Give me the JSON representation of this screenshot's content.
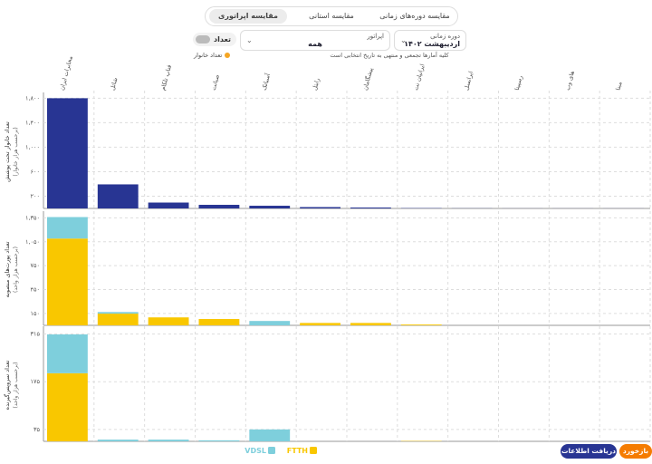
{
  "ui": {
    "tabs": [
      "مقایسه دوره‌های زمانی",
      "مقایسه استانی",
      "مقایسه اپراتوری"
    ],
    "toggle": "تعداد",
    "operator_label": "اپراتور",
    "operator_value": "همه",
    "period_label": "دوره زمانی",
    "period_value": "اردیبهشت ۱۴۰۲",
    "note": "کلیه آمارها تجمعی و منتهی به تاریخ انتخابی است",
    "household_legend": "تعداد خانوار",
    "buttons": [
      "دریافت اطلاعات",
      "بازخورد"
    ]
  },
  "chart_data": [
    {
      "type": "bar",
      "ylabel": "تعداد خانوار تحت پوشش",
      "yunit": "(برحسب هزار خانوار)",
      "categories": [
        "مخابرات ایران",
        "شاتل",
        "فناپ تلکام",
        "صبانت",
        "آسیاتک",
        "رایتل",
        "پیشگامان",
        "ایرانیان نت",
        "ایرانسل",
        "رسپینا",
        "های وب",
        "مبنا"
      ],
      "values": [
        1800,
        393,
        96,
        59,
        44,
        22,
        15,
        5,
        2,
        1,
        1,
        1
      ],
      "color": "#283593",
      "ylim": [
        0,
        1850
      ],
      "yticks": [
        {
          "value": 200,
          "label": "۲۰۰"
        },
        {
          "value": 600,
          "label": "۶۰۰"
        },
        {
          "value": 1000,
          "label": "۱,۰۰۰"
        },
        {
          "value": 1400,
          "label": "۱,۴۰۰"
        },
        {
          "value": 1800,
          "label": "۱,۸۰۰"
        }
      ],
      "grid": true
    },
    {
      "type": "stacked-bar",
      "ylabel": "تعداد پورت‌های منصوبه",
      "yunit": "(برحسب هزار واحد)",
      "series": [
        {
          "name": "FTTH",
          "color": "#f9c700",
          "values": [
            1090,
            147,
            100,
            80,
            0,
            30,
            30,
            10,
            0,
            0,
            0,
            0
          ]
        },
        {
          "name": "VDSL",
          "color": "#7ecfdc",
          "values": [
            270,
            20,
            0,
            0,
            55,
            0,
            0,
            0,
            0,
            0,
            0,
            0
          ]
        }
      ],
      "ylim": [
        0,
        1400
      ],
      "yticks": [
        {
          "value": 150,
          "label": "۱۵۰"
        },
        {
          "value": 450,
          "label": "۴۵۰"
        },
        {
          "value": 750,
          "label": "۷۵۰"
        },
        {
          "value": 1050,
          "label": "۱,۰۵۰"
        },
        {
          "value": 1350,
          "label": "۱,۳۵۰"
        }
      ],
      "grid": true,
      "legend": "bottom"
    },
    {
      "type": "stacked-bar",
      "ylabel": "تعداد سرویس‌گیرنده",
      "yunit": "(برحسب هزار واحد)",
      "series": [
        {
          "color": "#f9c700",
          "values": [
            200,
            0,
            0,
            0,
            0,
            0,
            0,
            1,
            0,
            0,
            0,
            0
          ]
        },
        {
          "color": "#7ecfdc",
          "values": [
            114,
            5,
            5,
            3,
            35,
            0,
            0,
            0,
            0,
            0,
            0,
            0
          ]
        }
      ],
      "ylim": [
        0,
        330
      ],
      "yticks": [
        {
          "value": 35,
          "label": "۳۵"
        },
        {
          "value": 175,
          "label": "۱۷۵"
        },
        {
          "value": 315,
          "label": "۳۱۵"
        }
      ],
      "grid": true
    }
  ]
}
